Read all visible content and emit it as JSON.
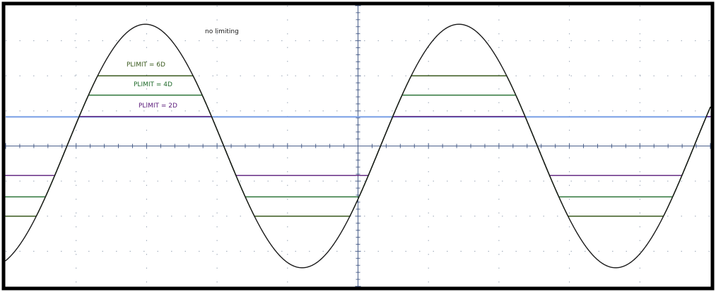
{
  "chart_data": {
    "type": "line",
    "title": "",
    "xlabel": "",
    "ylabel": "",
    "grid": true,
    "grid_style": "dotted",
    "annotations": {
      "no_limiting": "no limiting",
      "plimit_6d": "PLIMIT = 6D",
      "plimit_4d": "PLIMIT = 4D",
      "plimit_2d": "PLIMIT = 2D"
    },
    "xlim": [
      0,
      10
    ],
    "ylim": [
      -4,
      4
    ],
    "sine": {
      "amplitude": 3.47,
      "period": 4.45,
      "phase_zero_x": 0.87
    },
    "reference_levels": {
      "center_axis": 0,
      "cursor_level": 0.83
    },
    "series": [
      {
        "name": "no limiting",
        "color": "#1a1a1a",
        "upper_limit": null,
        "lower_limit": null
      },
      {
        "name": "PLIMIT = 6D",
        "color": "#3a5a1e",
        "upper_limit": 2.0,
        "lower_limit": -2.0
      },
      {
        "name": "PLIMIT = 4D",
        "color": "#1f6a2a",
        "upper_limit": 1.45,
        "lower_limit": -1.45
      },
      {
        "name": "PLIMIT = 2D",
        "color": "#5a1a7a",
        "upper_limit": 0.84,
        "lower_limit": -0.84
      }
    ],
    "colors": {
      "frame": "#000000",
      "grid": "#9aa5b5",
      "center_axis": "#4a5f8a",
      "cursor": "#7fa3e6"
    }
  }
}
